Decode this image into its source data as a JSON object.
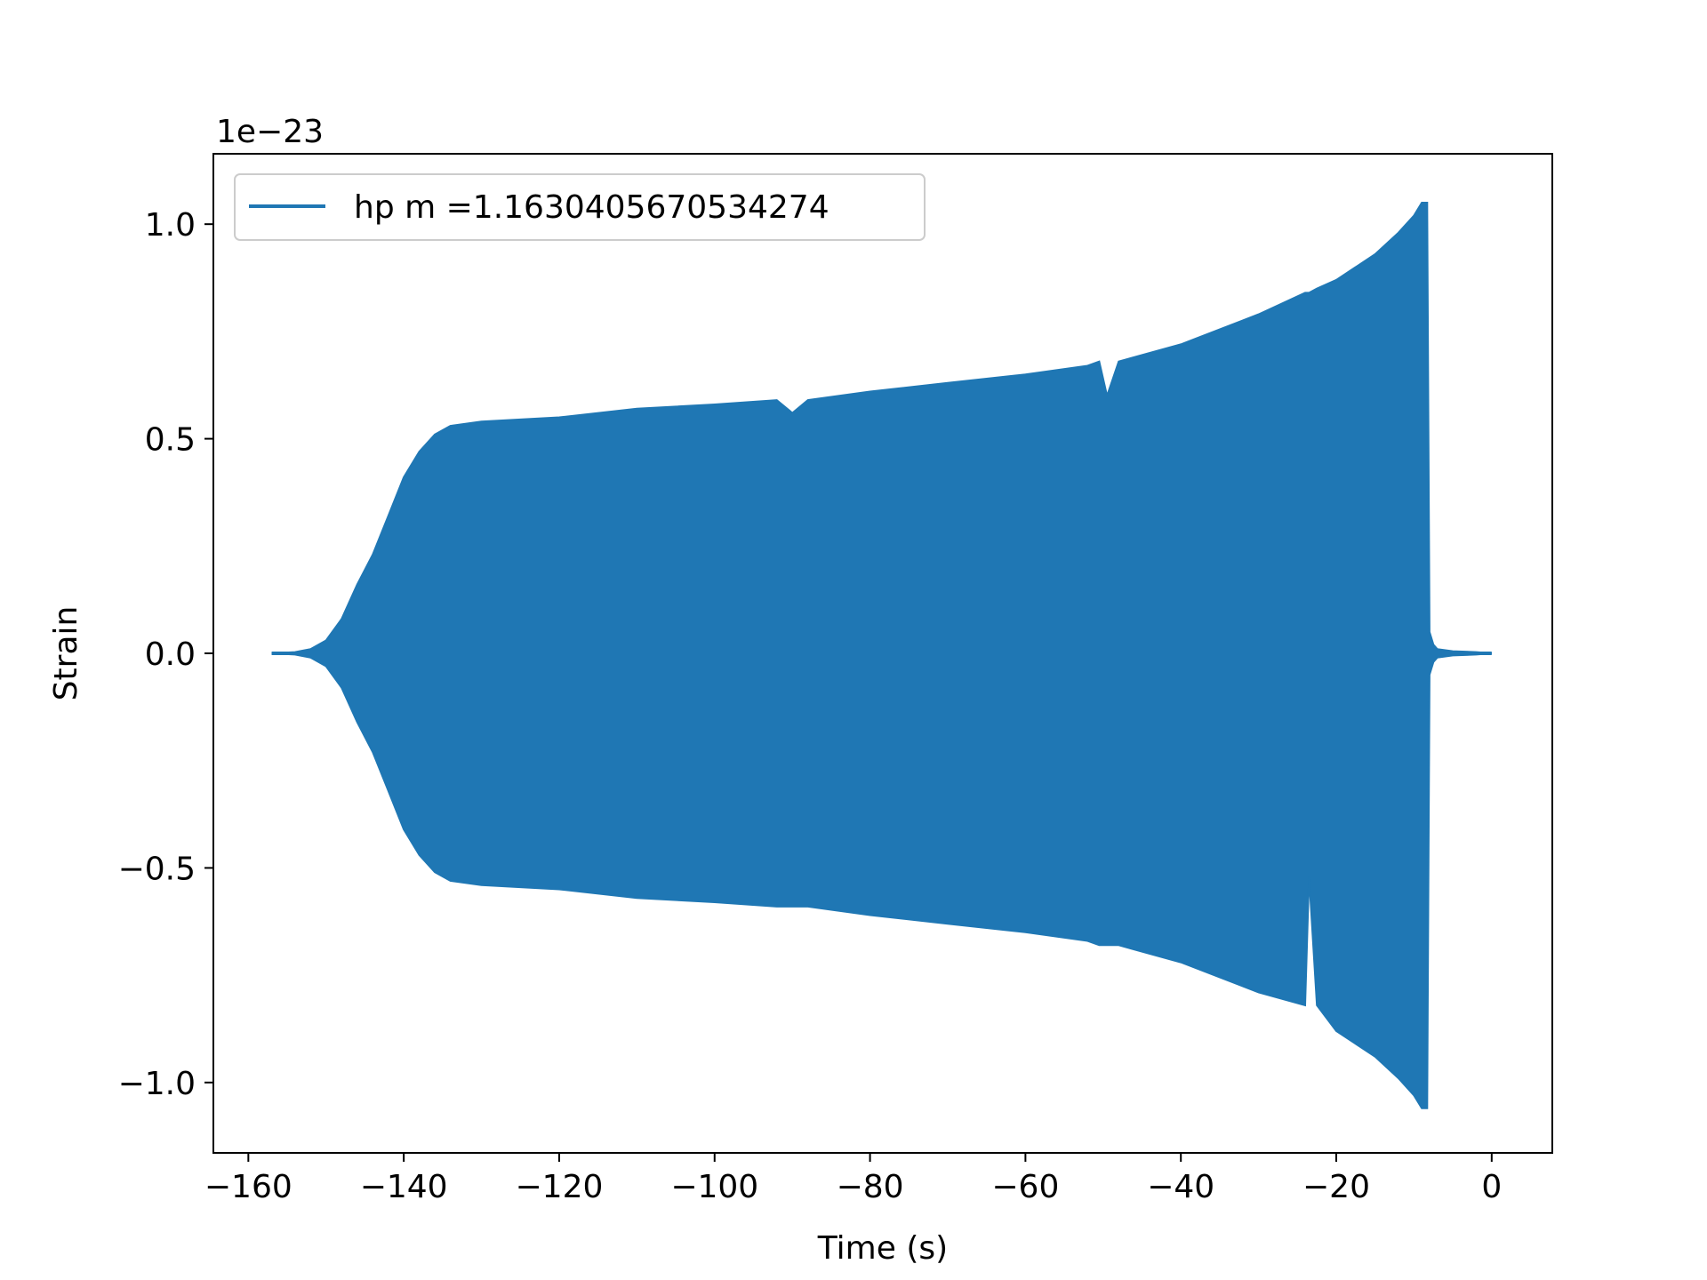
{
  "chart_data": {
    "type": "area",
    "title": "",
    "xlabel": "Time (s)",
    "ylabel": "Strain",
    "y_offset_label": "1e−23",
    "xlim": [
      -164.5,
      7.8
    ],
    "ylim": [
      -1.164,
      1.164
    ],
    "x_ticks": [
      -160,
      -140,
      -120,
      -100,
      -80,
      -60,
      -40,
      -20,
      0
    ],
    "x_tick_labels": [
      "−160",
      "−140",
      "−120",
      "−100",
      "−80",
      "−60",
      "−40",
      "−20",
      "0"
    ],
    "y_ticks": [
      -1.0,
      -0.5,
      0.0,
      0.5,
      1.0
    ],
    "y_tick_labels": [
      "−1.0",
      "−0.5",
      "0.0",
      "0.5",
      "1.0"
    ],
    "grid": false,
    "legend_position": "upper-left",
    "series": [
      {
        "name": "hp m =1.1630405670534274",
        "color": "#1f77b4",
        "x": [
          -157,
          -154,
          -152,
          -150,
          -148,
          -146,
          -144,
          -142,
          -140,
          -138,
          -136,
          -134,
          -130,
          -120,
          -110,
          -100,
          -92,
          -90,
          -88,
          -80,
          -70,
          -60,
          -52,
          -50.5,
          -49.5,
          -48,
          -40,
          -30,
          -24,
          -23.5,
          -22.5,
          -20,
          -15,
          -12,
          -10,
          -9,
          -8.3,
          -8,
          -7.5,
          -7,
          -5,
          -2,
          0
        ],
        "upper": [
          0,
          0.003,
          0.01,
          0.03,
          0.08,
          0.16,
          0.23,
          0.32,
          0.41,
          0.47,
          0.51,
          0.53,
          0.54,
          0.55,
          0.57,
          0.58,
          0.59,
          0.56,
          0.59,
          0.61,
          0.63,
          0.65,
          0.67,
          0.68,
          0.6,
          0.68,
          0.72,
          0.79,
          0.84,
          0.84,
          0.85,
          0.87,
          0.93,
          0.98,
          1.02,
          1.05,
          1.05,
          0.05,
          0.02,
          0.01,
          0.005,
          0.003,
          0
        ],
        "lower": [
          0,
          -0.003,
          -0.01,
          -0.03,
          -0.08,
          -0.16,
          -0.23,
          -0.32,
          -0.41,
          -0.47,
          -0.51,
          -0.53,
          -0.54,
          -0.55,
          -0.57,
          -0.58,
          -0.59,
          -0.59,
          -0.59,
          -0.61,
          -0.63,
          -0.65,
          -0.67,
          -0.68,
          -0.68,
          -0.68,
          -0.72,
          -0.79,
          -0.82,
          -0.52,
          -0.82,
          -0.88,
          -0.94,
          -0.99,
          -1.03,
          -1.06,
          -1.06,
          -0.05,
          -0.02,
          -0.01,
          -0.005,
          -0.003,
          0
        ]
      }
    ]
  }
}
